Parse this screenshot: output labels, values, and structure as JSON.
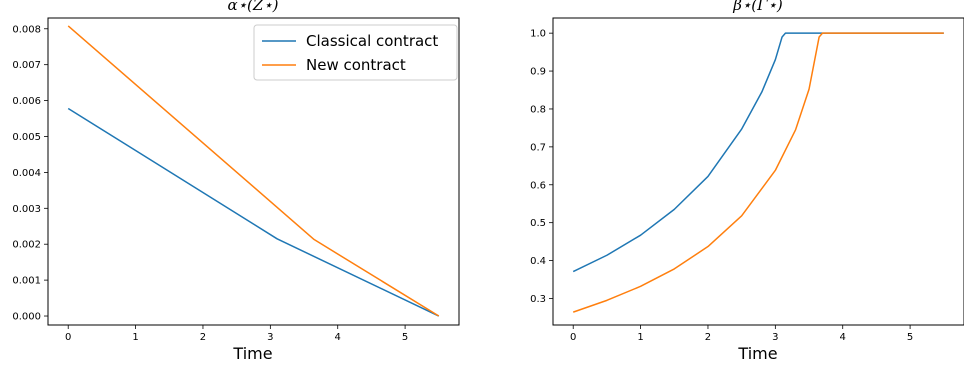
{
  "chart_data": [
    {
      "type": "line",
      "title": "α⋆(Z⋆)",
      "xlabel": "Time",
      "ylabel": "",
      "xlim": [
        -0.3,
        5.8
      ],
      "ylim": [
        -0.00025,
        0.0083
      ],
      "xticks": [
        0,
        1,
        2,
        3,
        4,
        5
      ],
      "xtick_labels": [
        "0",
        "1",
        "2",
        "3",
        "4",
        "5"
      ],
      "yticks": [
        0,
        0.001,
        0.002,
        0.003,
        0.004,
        0.005,
        0.006,
        0.007,
        0.008
      ],
      "ytick_labels": [
        "0.000",
        "0.001",
        "0.002",
        "0.003",
        "0.004",
        "0.005",
        "0.006",
        "0.007",
        "0.008"
      ],
      "grid": false,
      "legend_position": "top-right",
      "series": [
        {
          "name": "Classical contract",
          "color": "#1f77b4",
          "x": [
            0,
            3.1,
            5.5
          ],
          "y": [
            0.00578,
            0.00215,
            0.0
          ]
        },
        {
          "name": "New contract",
          "color": "#ff7f0e",
          "x": [
            0,
            3.65,
            5.5
          ],
          "y": [
            0.00808,
            0.00213,
            0.0
          ]
        }
      ]
    },
    {
      "type": "line",
      "title": "β⋆(Γ⋆)",
      "xlabel": "Time",
      "ylabel": "",
      "xlim": [
        -0.3,
        5.8
      ],
      "ylim": [
        0.23,
        1.04
      ],
      "xticks": [
        0,
        1,
        2,
        3,
        4,
        5
      ],
      "xtick_labels": [
        "0",
        "1",
        "2",
        "3",
        "4",
        "5"
      ],
      "yticks": [
        0.3,
        0.4,
        0.5,
        0.6,
        0.7,
        0.8,
        0.9,
        1.0
      ],
      "ytick_labels": [
        "0.3",
        "0.4",
        "0.5",
        "0.6",
        "0.7",
        "0.8",
        "0.9",
        "1.0"
      ],
      "grid": false,
      "legend": false,
      "series": [
        {
          "color": "#1f77b4",
          "x": [
            0,
            0.5,
            1.0,
            1.5,
            2.0,
            2.5,
            2.8,
            3.0,
            3.1,
            3.15,
            3.2,
            3.5,
            4.0,
            4.5,
            5.0,
            5.5
          ],
          "y": [
            0.371,
            0.414,
            0.467,
            0.535,
            0.622,
            0.747,
            0.845,
            0.93,
            0.99,
            1.0,
            1.0,
            1.0,
            1.0,
            1.0,
            1.0,
            1.0
          ],
          "name": ""
        },
        {
          "color": "#ff7f0e",
          "x": [
            0,
            0.5,
            1.0,
            1.5,
            2.0,
            2.5,
            3.0,
            3.3,
            3.5,
            3.65,
            3.7,
            4.0,
            4.5,
            5.0,
            5.5
          ],
          "y": [
            0.264,
            0.295,
            0.332,
            0.378,
            0.437,
            0.518,
            0.638,
            0.745,
            0.852,
            0.99,
            1.0,
            1.0,
            1.0,
            1.0,
            1.0
          ],
          "name": ""
        }
      ]
    }
  ]
}
